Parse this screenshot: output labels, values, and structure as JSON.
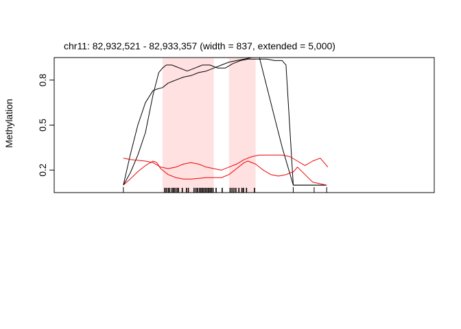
{
  "chart_data": {
    "type": "line",
    "title": "chr11: 82,932,521 - 82,933,357 (width = 837, extended = 5,000)",
    "xlabel": "",
    "ylabel": "Methylation",
    "xlim": [
      0,
      100
    ],
    "ylim": [
      0.05,
      0.95
    ],
    "yticks": [
      0.2,
      0.5,
      0.8
    ],
    "ytick_labels": [
      "0.2",
      "0.5",
      "0.8"
    ],
    "grid": false,
    "legend": "none",
    "colors": {
      "black_series": "#000000",
      "red_series": "#ee0000",
      "highlight": "#ffe1e1",
      "frame": "#000000"
    },
    "highlight_regions": [
      {
        "start": 28.5,
        "end": 42.0
      },
      {
        "start": 46.0,
        "end": 53.0
      }
    ],
    "cpg_ticks_x": [
      29.1,
      29.5,
      30.0,
      30.4,
      31.0,
      31.4,
      31.8,
      32.3,
      32.7,
      33.7,
      34.8,
      35.3,
      36.8,
      37.3,
      37.7,
      38.2,
      38.6,
      39.0,
      39.4,
      39.8,
      40.2,
      40.6,
      41.0,
      41.4,
      41.8,
      42.6,
      44.2,
      46.3,
      46.8,
      47.3,
      47.8,
      48.6,
      49.4,
      49.8,
      50.6,
      52.7
    ],
    "edge_ticks_x": [
      18.2,
      62.9,
      68.4,
      71.7
    ],
    "series": [
      {
        "x": [
          18.2,
          20.0,
          22.0,
          24.0,
          26.0,
          27.5,
          28.5,
          29.5,
          31.0,
          33.0,
          35.0,
          37.0,
          39.0,
          41.0,
          43.0,
          45.0,
          47.0,
          49.0,
          51.0,
          53.0,
          56.0,
          58.0,
          60.0,
          61.0,
          62.9,
          68.4,
          71.7
        ],
        "values": [
          0.1,
          0.18,
          0.3,
          0.45,
          0.7,
          0.85,
          0.88,
          0.9,
          0.9,
          0.88,
          0.86,
          0.88,
          0.9,
          0.9,
          0.88,
          0.88,
          0.91,
          0.93,
          0.94,
          0.94,
          0.94,
          0.93,
          0.93,
          0.9,
          0.1,
          0.1,
          0.1
        ]
      },
      {
        "x": [
          18.2,
          20.0,
          22.0,
          24.0,
          26.0,
          27.0,
          28.5,
          30.0,
          32.0,
          34.0,
          36.0,
          38.0,
          40.0,
          42.0,
          44.0,
          46.0,
          48.0,
          50.0,
          52.0,
          53.0,
          54.0,
          56.0,
          58.0,
          60.0,
          62.9,
          65.0,
          68.4,
          71.7
        ],
        "values": [
          0.1,
          0.3,
          0.5,
          0.65,
          0.73,
          0.74,
          0.75,
          0.78,
          0.8,
          0.82,
          0.83,
          0.85,
          0.86,
          0.88,
          0.9,
          0.92,
          0.93,
          0.94,
          0.95,
          0.95,
          0.95,
          0.75,
          0.55,
          0.35,
          0.1,
          0.1,
          0.1,
          0.1
        ]
      },
      {
        "x": [
          18.2,
          20.0,
          22.0,
          24.0,
          26.0,
          28.0,
          30.0,
          32.0,
          34.0,
          36.0,
          38.0,
          40.0,
          42.0,
          44.0,
          46.0,
          48.0,
          50.0,
          52.0,
          54.0,
          57.0,
          60.0,
          62.0,
          64.0,
          66.0,
          68.0,
          70.0,
          72.0
        ],
        "values": [
          0.28,
          0.27,
          0.265,
          0.26,
          0.25,
          0.22,
          0.21,
          0.22,
          0.24,
          0.25,
          0.24,
          0.22,
          0.21,
          0.2,
          0.22,
          0.24,
          0.27,
          0.29,
          0.3,
          0.3,
          0.3,
          0.29,
          0.26,
          0.23,
          0.26,
          0.28,
          0.22
        ]
      },
      {
        "x": [
          18.2,
          20.0,
          22.0,
          24.0,
          26.0,
          27.0,
          28.0,
          30.0,
          32.0,
          34.0,
          36.0,
          38.0,
          40.0,
          42.0,
          44.0,
          46.0,
          48.0,
          50.0,
          51.0,
          53.0,
          55.0,
          57.0,
          59.0,
          61.0,
          63.0,
          64.0,
          66.0,
          68.0,
          71.7
        ],
        "values": [
          0.1,
          0.14,
          0.19,
          0.23,
          0.26,
          0.25,
          0.21,
          0.17,
          0.15,
          0.14,
          0.14,
          0.145,
          0.15,
          0.15,
          0.15,
          0.17,
          0.21,
          0.25,
          0.26,
          0.24,
          0.2,
          0.17,
          0.16,
          0.17,
          0.19,
          0.22,
          0.17,
          0.12,
          0.1
        ]
      }
    ]
  }
}
